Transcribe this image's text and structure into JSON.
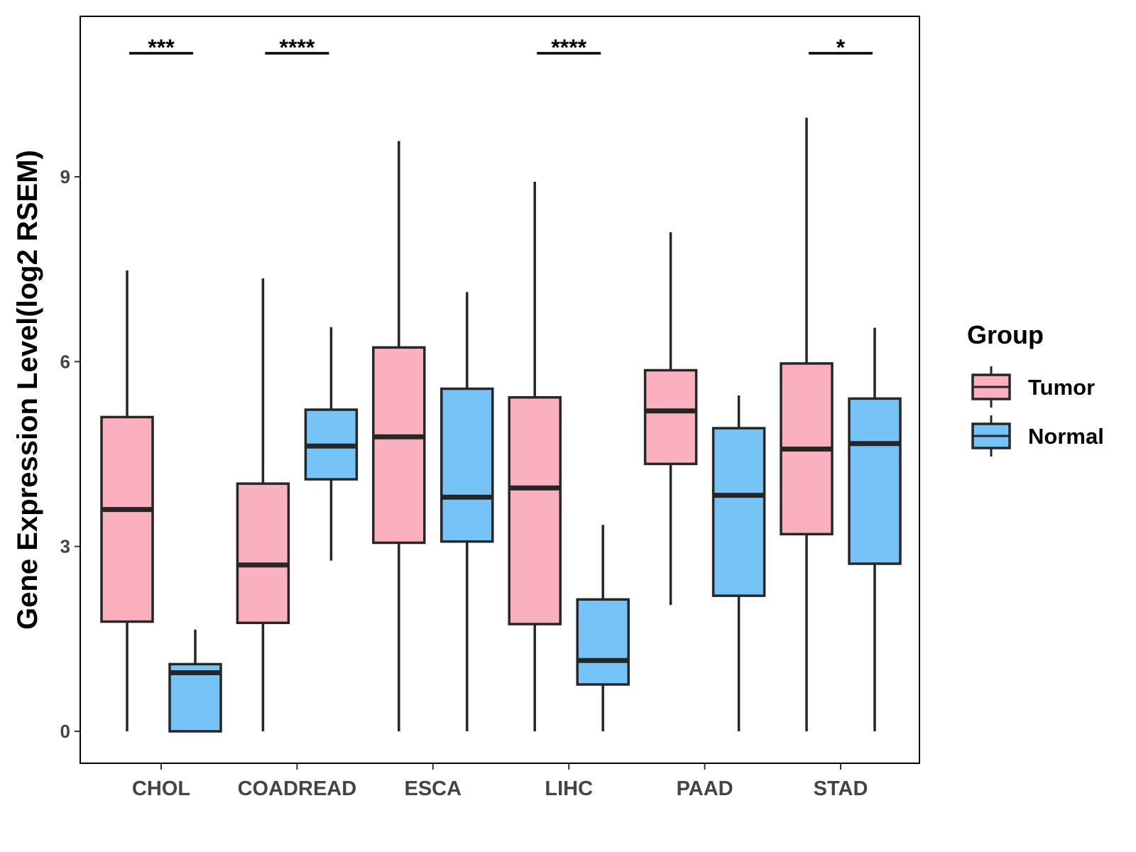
{
  "chart_data": {
    "type": "boxplot",
    "title": "",
    "xlabel": "",
    "ylabel": "Gene Expression Level(log2 RSEM)",
    "ylim": [
      -0.55,
      11.6
    ],
    "yticks": [
      0,
      3,
      6,
      9
    ],
    "categories": [
      "CHOL",
      "COADREAD",
      "ESCA",
      "LIHC",
      "PAAD",
      "STAD"
    ],
    "legend": {
      "title": "Group",
      "position": "right",
      "entries": [
        {
          "name": "Tumor",
          "color": "#FBB0C0"
        },
        {
          "name": "Normal",
          "color": "#76C3F8"
        }
      ]
    },
    "series": [
      {
        "name": "Tumor",
        "color": "#FBB0C0",
        "boxes": [
          {
            "min": 0.0,
            "q1": 1.78,
            "median": 3.6,
            "q3": 5.1,
            "max": 7.48
          },
          {
            "min": 0.0,
            "q1": 1.76,
            "median": 2.7,
            "q3": 4.02,
            "max": 7.35
          },
          {
            "min": 0.0,
            "q1": 3.06,
            "median": 4.78,
            "q3": 6.23,
            "max": 9.58
          },
          {
            "min": 0.0,
            "q1": 1.74,
            "median": 3.95,
            "q3": 5.42,
            "max": 8.92
          },
          {
            "min": 2.05,
            "q1": 4.34,
            "median": 5.2,
            "q3": 5.86,
            "max": 8.1
          },
          {
            "min": 0.0,
            "q1": 3.2,
            "median": 4.58,
            "q3": 5.97,
            "max": 9.96
          }
        ]
      },
      {
        "name": "Normal",
        "color": "#76C3F8",
        "boxes": [
          {
            "min": 0.0,
            "q1": 0.0,
            "median": 0.95,
            "q3": 1.09,
            "max": 1.65
          },
          {
            "min": 2.77,
            "q1": 4.09,
            "median": 4.63,
            "q3": 5.22,
            "max": 6.56
          },
          {
            "min": 0.0,
            "q1": 3.08,
            "median": 3.8,
            "q3": 5.56,
            "max": 7.13
          },
          {
            "min": 0.0,
            "q1": 0.76,
            "median": 1.15,
            "q3": 2.14,
            "max": 3.35
          },
          {
            "min": 0.0,
            "q1": 2.2,
            "median": 3.83,
            "q3": 4.92,
            "max": 5.45
          },
          {
            "min": 0.0,
            "q1": 2.72,
            "median": 4.67,
            "q3": 5.4,
            "max": 6.55
          }
        ]
      }
    ],
    "significance": [
      {
        "category": "CHOL",
        "label": "***"
      },
      {
        "category": "COADREAD",
        "label": "****"
      },
      {
        "category": "LIHC",
        "label": "****"
      },
      {
        "category": "STAD",
        "label": "*"
      }
    ],
    "grid": false
  }
}
